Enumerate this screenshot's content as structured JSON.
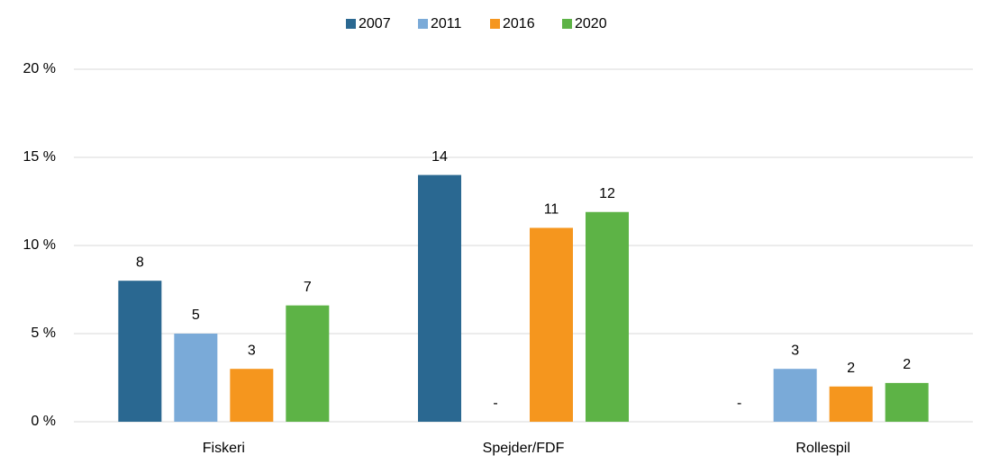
{
  "chart_data": {
    "type": "bar",
    "categories": [
      "Fiskeri",
      "Spejder/FDF",
      "Rollespil"
    ],
    "series": [
      {
        "name": "2007",
        "color": "#2a6891",
        "values": [
          8,
          14,
          null
        ],
        "value_labels": [
          "8",
          "14",
          "-"
        ]
      },
      {
        "name": "2011",
        "color": "#7aaad8",
        "values": [
          5,
          null,
          3
        ],
        "value_labels": [
          "5",
          "-",
          "3"
        ]
      },
      {
        "name": "2016",
        "color": "#f5961e",
        "values": [
          3,
          11,
          2
        ],
        "value_labels": [
          "3",
          "11",
          "2"
        ]
      },
      {
        "name": "2020",
        "color": "#5db346",
        "values": [
          6.6,
          11.9,
          2.2
        ],
        "value_labels": [
          "7",
          "12",
          "2"
        ]
      }
    ],
    "ylim": [
      0,
      20
    ],
    "yticks": [
      {
        "value": 0,
        "label": "0 %"
      },
      {
        "value": 5,
        "label": "5 %"
      },
      {
        "value": 10,
        "label": "10 %"
      },
      {
        "value": 15,
        "label": "15 %"
      },
      {
        "value": 20,
        "label": "20 %"
      }
    ],
    "grid": true,
    "legend": "top"
  }
}
